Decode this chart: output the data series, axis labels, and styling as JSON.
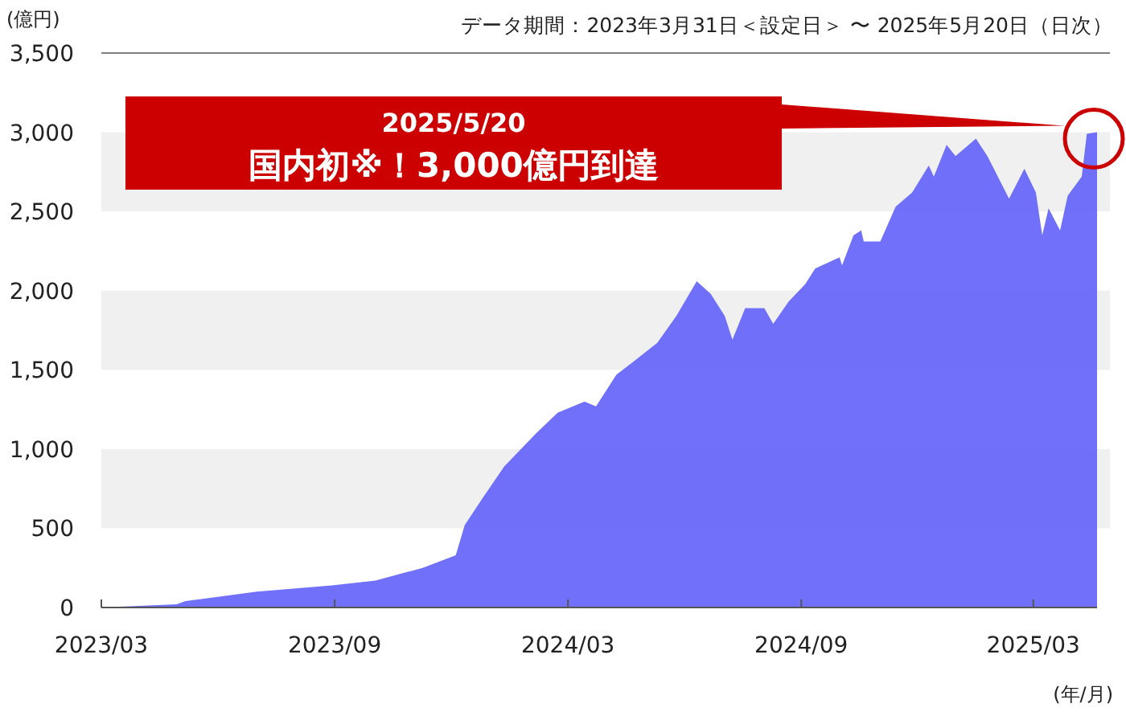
{
  "chart_data": {
    "type": "area",
    "subtitle": "データ期間：2023年3月31日＜設定日＞ 〜 2025年5月20日（日次）",
    "ylabel": "(億円)",
    "xlabel": "(年/月)",
    "x": [
      "2023-03-31",
      "2023-05-29",
      "2023-06-05",
      "2023-07-31",
      "2023-09-28",
      "2023-11-01",
      "2023-12-08",
      "2024-01-03",
      "2024-01-10",
      "2024-01-24",
      "2024-02-10",
      "2024-03-06",
      "2024-03-23",
      "2024-04-13",
      "2024-04-22",
      "2024-05-08",
      "2024-05-21",
      "2024-06-09",
      "2024-06-24",
      "2024-07-10",
      "2024-07-21",
      "2024-08-01",
      "2024-08-07",
      "2024-08-17",
      "2024-09-01",
      "2024-09-08",
      "2024-09-20",
      "2024-10-03",
      "2024-10-11",
      "2024-10-30",
      "2024-11-01",
      "2024-11-10",
      "2024-11-16",
      "2024-11-18",
      "2024-12-01",
      "2024-12-13",
      "2024-12-26",
      "2025-01-08",
      "2025-01-12",
      "2025-01-22",
      "2025-01-29",
      "2025-02-14",
      "2025-02-23",
      "2025-03-12",
      "2025-03-24",
      "2025-04-02",
      "2025-04-07",
      "2025-04-12",
      "2025-04-21",
      "2025-04-27",
      "2025-05-08",
      "2025-05-12",
      "2025-05-20"
    ],
    "series": [
      {
        "color": "#6464fa",
        "values": [
          0,
          20,
          40,
          100,
          140,
          170,
          250,
          330,
          520,
          690,
          890,
          1100,
          1230,
          1300,
          1270,
          1470,
          1550,
          1670,
          1840,
          2060,
          1980,
          1840,
          1690,
          1890,
          1890,
          1790,
          1930,
          2040,
          2140,
          2210,
          2160,
          2350,
          2380,
          2310,
          2310,
          2530,
          2620,
          2790,
          2720,
          2920,
          2850,
          2960,
          2850,
          2580,
          2770,
          2620,
          2350,
          2520,
          2380,
          2600,
          2720,
          2990,
          3000
        ]
      }
    ],
    "xlim": [
      "2023-03-31",
      "2025-05-20"
    ],
    "xticks": [
      {
        "value": "2023-03-31",
        "label": "2023/03"
      },
      {
        "value": "2023-09-30",
        "label": "2023/09"
      },
      {
        "value": "2024-03-31",
        "label": "2024/03"
      },
      {
        "value": "2024-09-30",
        "label": "2024/09"
      },
      {
        "value": "2025-03-31",
        "label": "2025/03"
      }
    ],
    "ylim": [
      0,
      3500
    ],
    "yticks": [
      {
        "value": 0,
        "label": "0"
      },
      {
        "value": 500,
        "label": "500"
      },
      {
        "value": 1000,
        "label": "1,000"
      },
      {
        "value": 1500,
        "label": "1,500"
      },
      {
        "value": 2000,
        "label": "2,000"
      },
      {
        "value": 2500,
        "label": "2,500"
      },
      {
        "value": 3000,
        "label": "3,000"
      },
      {
        "value": 3500,
        "label": "3,500"
      }
    ],
    "bands": [
      {
        "axis": "y",
        "from": 500,
        "to": 1000,
        "color": "#f0f0f0"
      },
      {
        "axis": "y",
        "from": 1500,
        "to": 2000,
        "color": "#f0f0f0"
      },
      {
        "axis": "y",
        "from": 2500,
        "to": 3000,
        "color": "#f0f0f0"
      }
    ],
    "annotations": [
      "2025/5/20",
      "国内初※！3,000億円到達"
    ]
  }
}
